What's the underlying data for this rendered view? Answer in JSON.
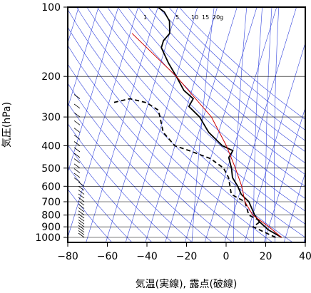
{
  "chart_data": {
    "type": "line",
    "title": "",
    "xlabel": "気温(実線), 露点(破線)",
    "ylabel": "気圧(hPa)",
    "xlim": [
      -80,
      40
    ],
    "ylim": [
      1050,
      100
    ],
    "y_scale": "log",
    "x_ticks": [
      -80,
      -60,
      -40,
      -20,
      0,
      20,
      40
    ],
    "x_tick_labels": [
      "−80",
      "−60",
      "−40",
      "−20",
      "0",
      "20",
      "40"
    ],
    "y_ticks": [
      100,
      200,
      300,
      400,
      500,
      600,
      700,
      800,
      900,
      1000
    ],
    "mixing_ratio_labels": [
      "1",
      "5",
      "10",
      "15",
      "20g"
    ],
    "series": [
      {
        "role": "temperature",
        "color": "#000000",
        "dash": "solid",
        "points": [
          [
            28,
            1000
          ],
          [
            20,
            925
          ],
          [
            14,
            850
          ],
          [
            11,
            800
          ],
          [
            6,
            700
          ],
          [
            1,
            650
          ],
          [
            -2,
            600
          ],
          [
            -6,
            550
          ],
          [
            -8,
            500
          ],
          [
            -11,
            450
          ],
          [
            -10,
            420
          ],
          [
            -16,
            400
          ],
          [
            -25,
            350
          ],
          [
            -32,
            300
          ],
          [
            -39,
            270
          ],
          [
            -38,
            250
          ],
          [
            -44,
            230
          ],
          [
            -50,
            200
          ],
          [
            -56,
            175
          ],
          [
            -62,
            150
          ],
          [
            -62,
            140
          ],
          [
            -60,
            130
          ],
          [
            -62,
            115
          ],
          [
            -66,
            105
          ],
          [
            -70,
            100
          ]
        ]
      },
      {
        "role": "dewpoint",
        "color": "#000000",
        "dash": "dashed",
        "points": [
          [
            25,
            1000
          ],
          [
            20,
            960
          ],
          [
            12,
            900
          ],
          [
            15,
            850
          ],
          [
            8,
            800
          ],
          [
            4,
            700
          ],
          [
            -4,
            650
          ],
          [
            -8,
            550
          ],
          [
            -12,
            500
          ],
          [
            -20,
            455
          ],
          [
            -32,
            420
          ],
          [
            -40,
            400
          ],
          [
            -48,
            350
          ],
          [
            -52,
            300
          ],
          [
            -54,
            280
          ],
          [
            -61,
            260
          ],
          [
            -70,
            250
          ],
          [
            -78,
            260
          ]
        ]
      },
      {
        "role": "reference",
        "color": "#cc0000",
        "dash": "solid",
        "points": [
          [
            28,
            1000
          ],
          [
            20,
            900
          ],
          [
            10,
            800
          ],
          [
            4,
            700
          ],
          [
            0,
            600
          ],
          [
            -6,
            500
          ],
          [
            -14,
            400
          ],
          [
            -26,
            300
          ],
          [
            -50,
            200
          ],
          [
            -79,
            130
          ]
        ]
      }
    ]
  }
}
